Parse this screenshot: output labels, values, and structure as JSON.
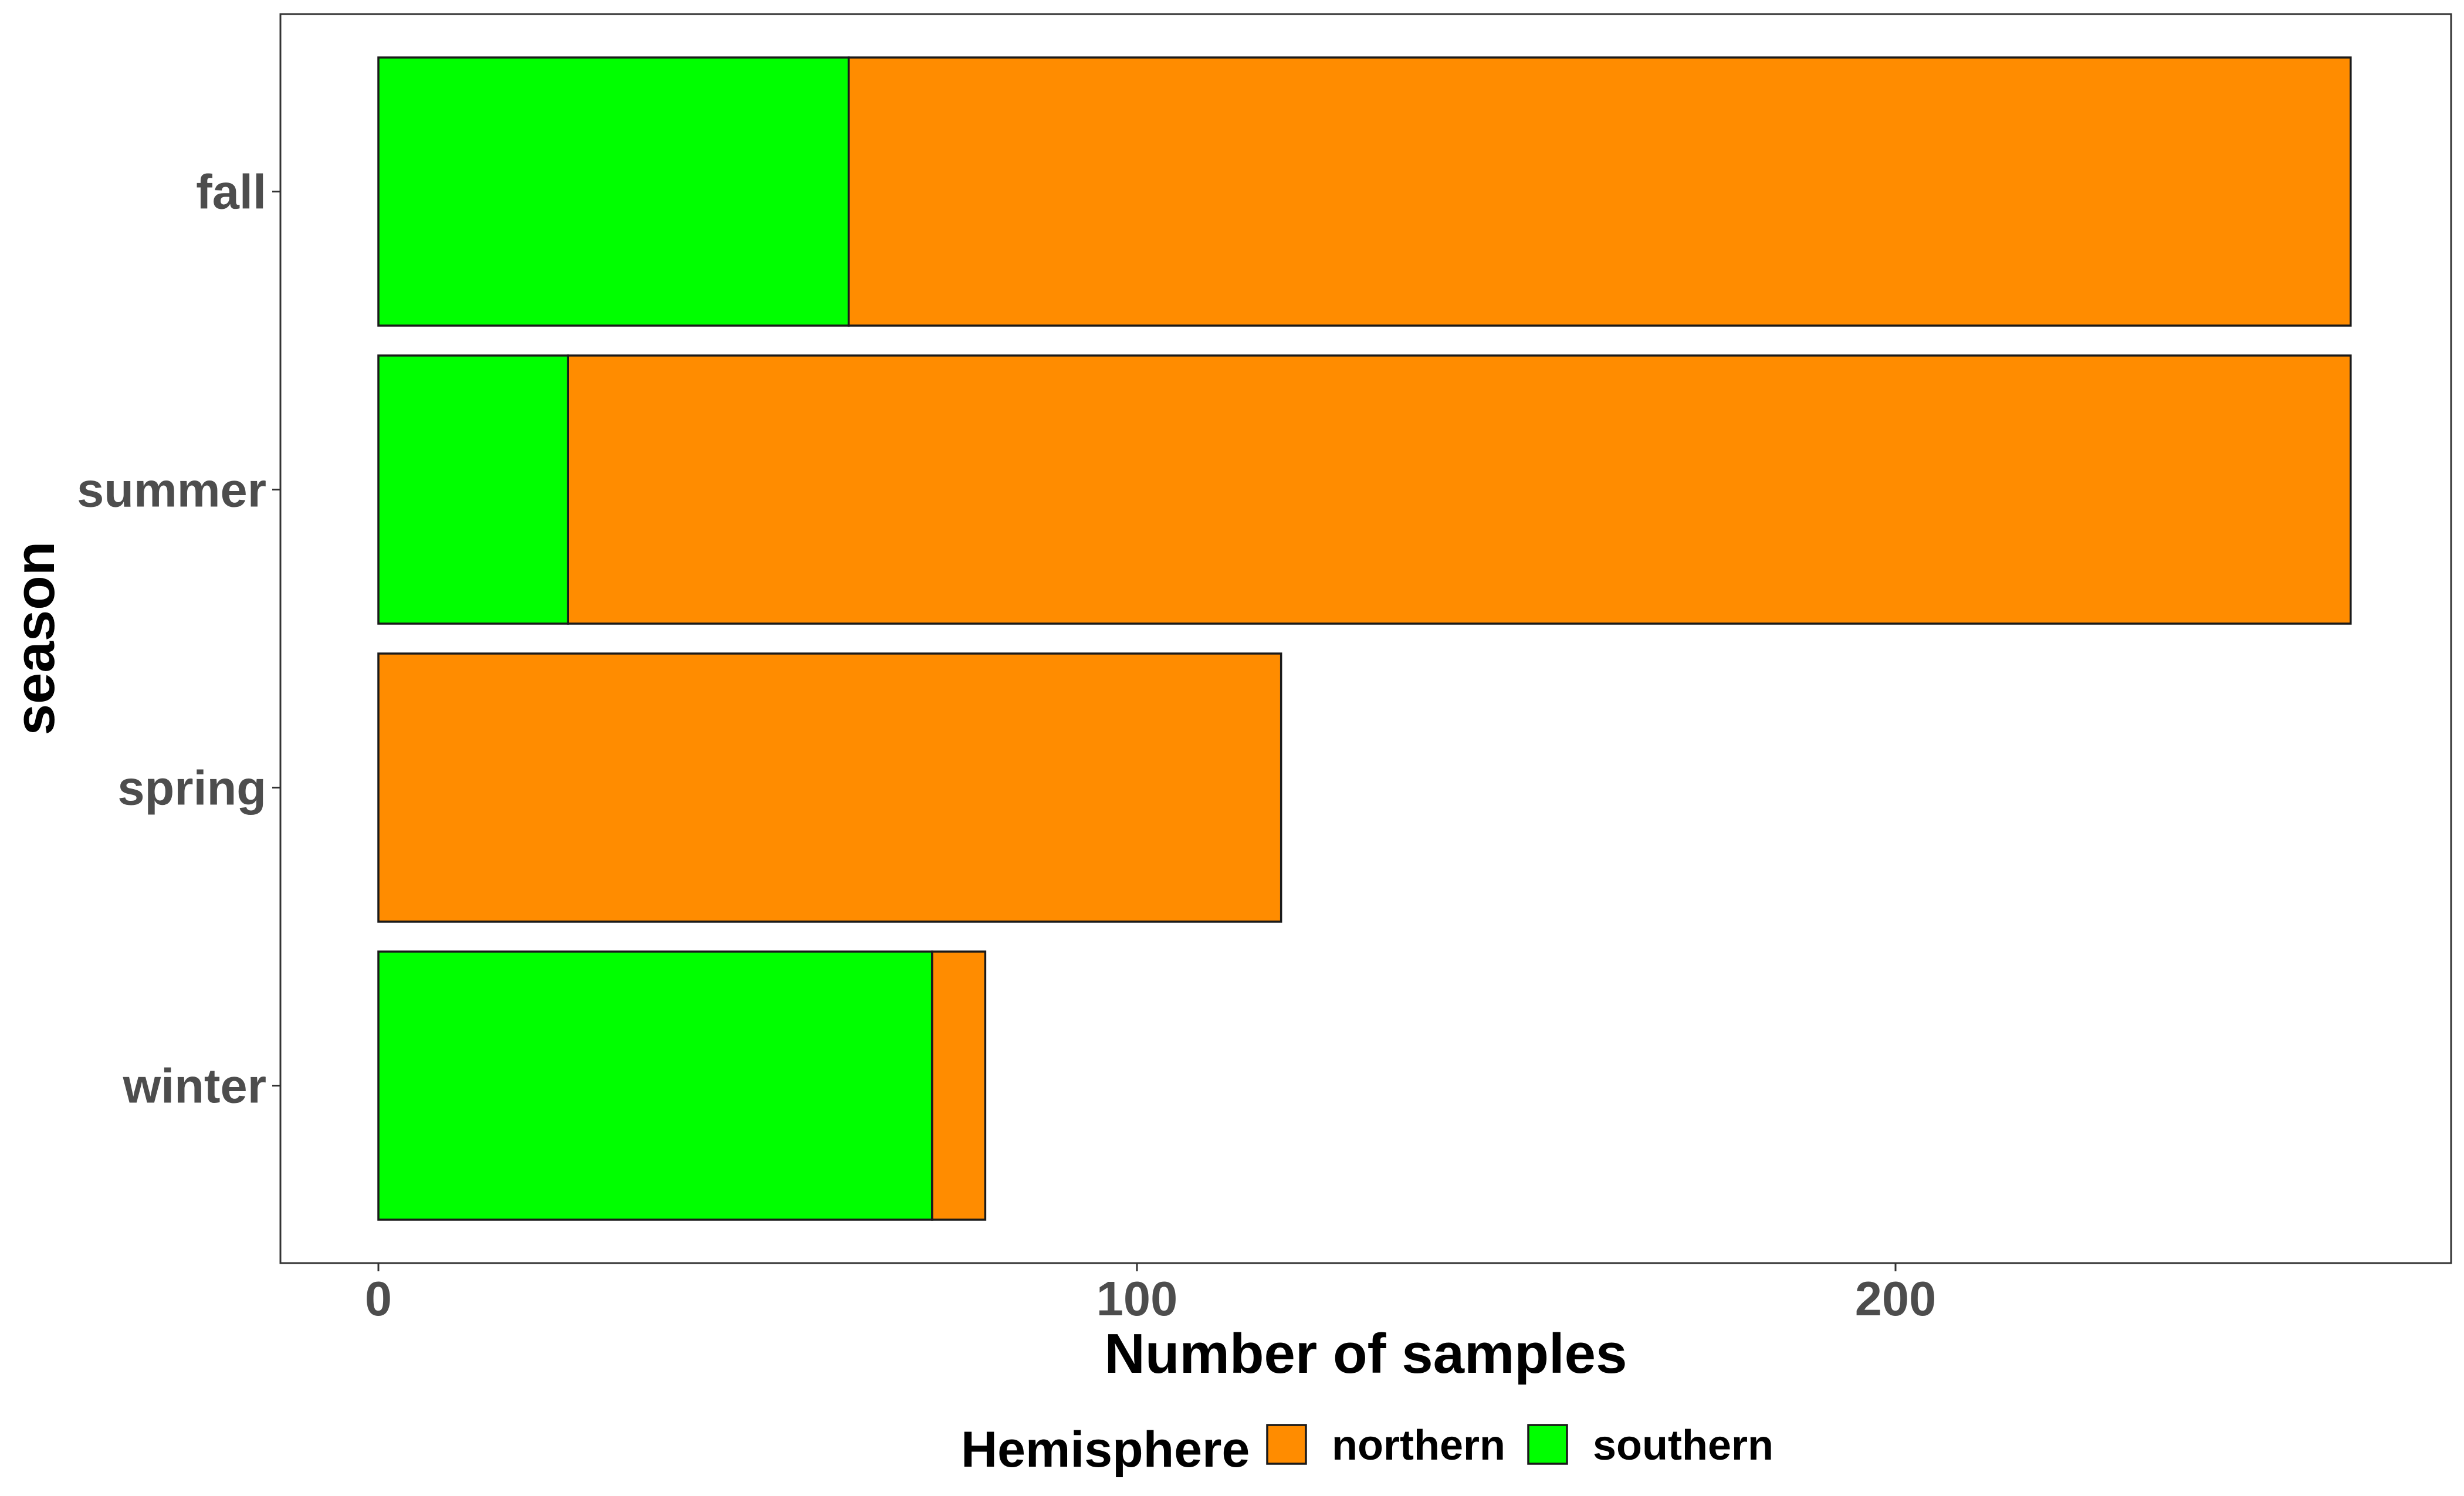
{
  "chart_data": {
    "type": "bar",
    "orientation": "horizontal",
    "stacked": true,
    "categories": [
      "fall",
      "summer",
      "spring",
      "winter"
    ],
    "series": [
      {
        "name": "southern",
        "color": "#00ff00",
        "values": [
          62,
          25,
          0,
          73
        ]
      },
      {
        "name": "northern",
        "color": "#ff8c00",
        "values": [
          198,
          235,
          119,
          7
        ]
      }
    ],
    "xlabel": "Number of samples",
    "ylabel": "season",
    "xlim": [
      -13,
      273
    ],
    "xticks": [
      0,
      100,
      200
    ],
    "xtick_labels": [
      "0",
      "100",
      "200"
    ],
    "grid": false,
    "legend": {
      "title": "Hemisphere",
      "position": "bottom",
      "items": [
        {
          "name": "northern",
          "color": "#ff8c00"
        },
        {
          "name": "southern",
          "color": "#00ff00"
        }
      ]
    }
  }
}
